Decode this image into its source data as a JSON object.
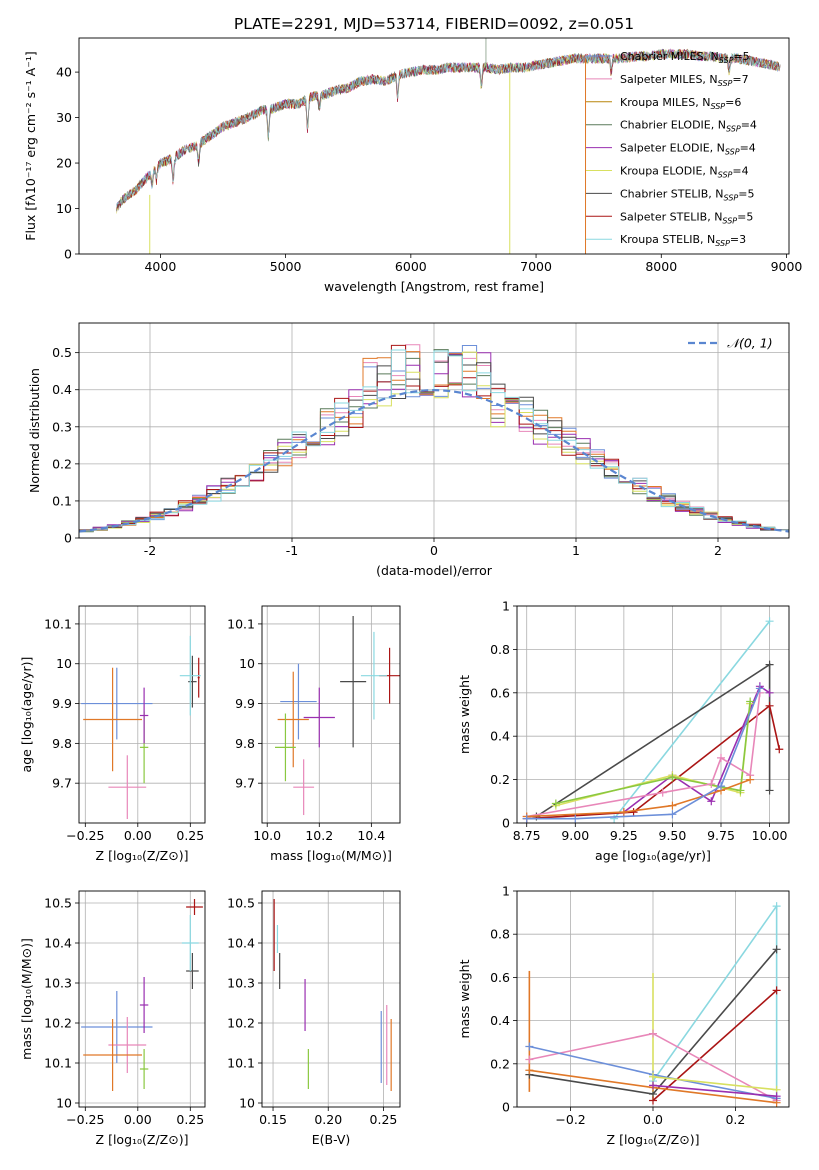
{
  "figure": {
    "title": "PLATE=2291, MJD=53714, FIBERID=0092, z=0.051"
  },
  "colors": {
    "chab_miles": "#6c8fd9",
    "salp_miles": "#e887b9",
    "krou_miles": "#b8860b",
    "chab_elodie": "#5a7a5a",
    "salp_elodie": "#9a2fb0",
    "krou_elodie": "#d8e060",
    "chab_stelib": "#4a4a4a",
    "salp_stelib": "#aa1515",
    "krou_stelib": "#8ad8e0",
    "orange": "#e07828",
    "green": "#8ac840",
    "normal": "#5a86d0",
    "grid": "#b0b0b0"
  },
  "chart_data": [
    {
      "id": "spectrum",
      "type": "line",
      "title": "PLATE=2291, MJD=53714, FIBERID=0092, z=0.051",
      "xlabel": "wavelength [Angstrom, rest frame]",
      "ylabel": "Flux [fλ10⁻¹⁷ erg cm⁻² s⁻¹ A⁻¹]",
      "xlim": [
        3350,
        9020
      ],
      "ylim": [
        0,
        47.5
      ],
      "xticks": [
        4000,
        5000,
        6000,
        7000,
        8000,
        9000
      ],
      "yticks": [
        0,
        10,
        20,
        30,
        40
      ],
      "grid": false,
      "legend_position": "top-right",
      "continuum": {
        "x": [
          3650,
          3700,
          3800,
          3900,
          4000,
          4100,
          4200,
          4300,
          4400,
          4500,
          4600,
          4700,
          4800,
          4900,
          5000,
          5100,
          5200,
          5300,
          5400,
          5500,
          5600,
          5700,
          5800,
          5900,
          6000,
          6100,
          6200,
          6300,
          6400,
          6500,
          6600,
          6700,
          6800,
          6900,
          7000,
          7100,
          7200,
          7300,
          7400,
          7500,
          7600,
          7700,
          7800,
          7900,
          8000,
          8100,
          8200,
          8300,
          8400,
          8500,
          8600,
          8700,
          8800,
          8900,
          8950
        ],
        "y": [
          10,
          12,
          14,
          17,
          20,
          21,
          23,
          24,
          26,
          28,
          29,
          30,
          31.5,
          32,
          33,
          33,
          34.5,
          35,
          36,
          36.5,
          38,
          38.5,
          38,
          39.5,
          40,
          40.5,
          40.5,
          41,
          41,
          41,
          41,
          40.5,
          41,
          41,
          41.5,
          42,
          42.5,
          43,
          43,
          43,
          43,
          43,
          43.5,
          43.5,
          44,
          44,
          44,
          43.5,
          43.5,
          43,
          43,
          42.5,
          42,
          41.5,
          41
        ]
      },
      "series": [
        {
          "name": "Chabrier MILES, N_SSP=5",
          "legend_main": "Chabrier MILES, N",
          "sub": "SSP",
          "suffix": "=5",
          "color_key": "chab_miles"
        },
        {
          "name": "Salpeter MILES, N_SSP=7",
          "legend_main": "Salpeter MILES, N",
          "sub": "SSP",
          "suffix": "=7",
          "color_key": "salp_miles"
        },
        {
          "name": "Kroupa MILES, N_SSP=6",
          "legend_main": "Kroupa MILES, N",
          "sub": "SSP",
          "suffix": "=6",
          "color_key": "krou_miles"
        },
        {
          "name": "Chabrier ELODIE, N_SSP=4",
          "legend_main": "Chabrier ELODIE, N",
          "sub": "SSP",
          "suffix": "=4",
          "color_key": "chab_elodie"
        },
        {
          "name": "Salpeter ELODIE, N_SSP=4",
          "legend_main": "Salpeter ELODIE, N",
          "sub": "SSP",
          "suffix": "=4",
          "color_key": "salp_elodie"
        },
        {
          "name": "Kroupa ELODIE, N_SSP=4",
          "legend_main": "Kroupa ELODIE, N",
          "sub": "SSP",
          "suffix": "=4",
          "color_key": "krou_elodie"
        },
        {
          "name": "Chabrier STELIB, N_SSP=5",
          "legend_main": "Chabrier STELIB, N",
          "sub": "SSP",
          "suffix": "=5",
          "color_key": "chab_stelib"
        },
        {
          "name": "Salpeter STELIB, N_SSP=5",
          "legend_main": "Salpeter STELIB, N",
          "sub": "SSP",
          "suffix": "=5",
          "color_key": "salp_stelib"
        },
        {
          "name": "Kroupa STELIB, N_SSP=3",
          "legend_main": "Kroupa STELIB, N",
          "sub": "SSP",
          "suffix": "=3",
          "color_key": "krou_stelib"
        }
      ],
      "legend_label_main": [
        "Chabrier MILES, N",
        "Salpeter MILES, N",
        "Kroupa MILES, N",
        "Chabrier ELODIE, N",
        "Salpeter ELODIE, N",
        "Kroupa ELODIE, N",
        "Chabrier STELIB, N",
        "Salpeter STELIB, N",
        "Kroupa STELIB, N"
      ],
      "legend_sub": "SSP",
      "legend_suffix": [
        "=5",
        "=7",
        "=6",
        "=4",
        "=4",
        "=4",
        "=5",
        "=5",
        "=3"
      ]
    },
    {
      "id": "residuals",
      "type": "histogram",
      "xlabel": "(data-model)/error",
      "ylabel": "Normed distribution",
      "xlim": [
        -2.5,
        2.5
      ],
      "ylim": [
        0,
        0.58
      ],
      "xticks": [
        -2,
        -1,
        0,
        1,
        2
      ],
      "yticks": [
        0.0,
        0.1,
        0.2,
        0.3,
        0.4,
        0.5
      ],
      "grid": true,
      "legend_position": "top-right",
      "legend_label": "𝒩(0, 1)",
      "normal_curve": {
        "mean": 0,
        "sigma": 1
      },
      "bin_width": 0.1
    },
    {
      "id": "age_vs_z",
      "type": "errorbar",
      "xlabel": "Z [log₁₀(Z/Z⊙)]",
      "ylabel": "age  [log₁₀(age/yr)]",
      "xlim": [
        -0.28,
        0.32
      ],
      "ylim": [
        9.6,
        10.145
      ],
      "xticks": [
        -0.25,
        0.0,
        0.25
      ],
      "xtick_labels": [
        "−0.25",
        "0.00",
        "0.25"
      ],
      "yticks": [
        9.7,
        9.8,
        9.9,
        10.0,
        10.1
      ],
      "grid": true,
      "points": [
        {
          "x": -0.1,
          "y": 9.9,
          "xerr": 0.17,
          "yerr": 0.09,
          "color_key": "chab_miles"
        },
        {
          "x": -0.05,
          "y": 9.69,
          "xerr": 0.09,
          "yerr": 0.08,
          "color_key": "salp_miles"
        },
        {
          "x": -0.12,
          "y": 9.86,
          "xerr": 0.14,
          "yerr": 0.13,
          "color_key": "orange"
        },
        {
          "x": 0.03,
          "y": 9.79,
          "xerr": 0.02,
          "yerr": 0.09,
          "color_key": "green"
        },
        {
          "x": 0.03,
          "y": 9.87,
          "xerr": 0.02,
          "yerr": 0.07,
          "color_key": "salp_elodie"
        },
        {
          "x": 0.26,
          "y": 9.955,
          "xerr": 0.02,
          "yerr": 0.065,
          "color_key": "chab_stelib"
        },
        {
          "x": 0.29,
          "y": 9.965,
          "xerr": 0.005,
          "yerr": 0.05,
          "color_key": "salp_stelib"
        },
        {
          "x": 0.25,
          "y": 9.97,
          "xerr": 0.05,
          "yerr": 0.1,
          "color_key": "krou_stelib"
        }
      ]
    },
    {
      "id": "age_vs_mass",
      "type": "errorbar",
      "xlabel": "mass [log₁₀(M/M⊙)]",
      "ylabel": "",
      "xlim": [
        9.98,
        10.51
      ],
      "ylim": [
        9.6,
        10.145
      ],
      "xticks": [
        10.0,
        10.2,
        10.4
      ],
      "xtick_labels": [
        "10.0",
        "10.2",
        "10.4"
      ],
      "yticks": [
        9.7,
        9.8,
        9.9,
        10.0,
        10.1
      ],
      "grid": true,
      "points": [
        {
          "x": 10.12,
          "y": 9.905,
          "xerr": 0.07,
          "yerr": 0.095,
          "color_key": "chab_miles"
        },
        {
          "x": 10.14,
          "y": 9.69,
          "xerr": 0.04,
          "yerr": 0.07,
          "color_key": "salp_miles"
        },
        {
          "x": 10.1,
          "y": 9.86,
          "xerr": 0.06,
          "yerr": 0.12,
          "color_key": "orange"
        },
        {
          "x": 10.07,
          "y": 9.79,
          "xerr": 0.04,
          "yerr": 0.085,
          "color_key": "green"
        },
        {
          "x": 10.2,
          "y": 9.865,
          "xerr": 0.06,
          "yerr": 0.075,
          "color_key": "salp_elodie"
        },
        {
          "x": 10.33,
          "y": 9.955,
          "xerr": 0.05,
          "yerr": 0.165,
          "color_key": "chab_stelib"
        },
        {
          "x": 10.47,
          "y": 9.97,
          "xerr": 0.04,
          "yerr": 0.07,
          "color_key": "salp_stelib"
        },
        {
          "x": 10.41,
          "y": 9.97,
          "xerr": 0.05,
          "yerr": 0.11,
          "color_key": "krou_stelib"
        }
      ]
    },
    {
      "id": "weight_vs_age",
      "type": "line",
      "xlabel": "age  [log₁₀(age/yr)]",
      "ylabel": "mass weight",
      "xlim": [
        8.7,
        10.1
      ],
      "ylim": [
        0,
        1.0
      ],
      "xticks": [
        8.75,
        9.0,
        9.25,
        9.5,
        9.75,
        10.0
      ],
      "xtick_labels": [
        "8.75",
        "9.00",
        "9.25",
        "9.50",
        "9.75",
        "10.00"
      ],
      "yticks": [
        0.0,
        0.2,
        0.4,
        0.6,
        0.8,
        1.0
      ],
      "grid": true,
      "series": [
        {
          "color_key": "krou_stelib",
          "x": [
            9.2,
            10.0
          ],
          "y": [
            0.02,
            0.93
          ]
        },
        {
          "color_key": "chab_stelib",
          "x": [
            8.8,
            10.0,
            10.0
          ],
          "y": [
            0.03,
            0.73,
            0.15
          ]
        },
        {
          "color_key": "salp_stelib",
          "x": [
            8.75,
            9.3,
            10.0,
            10.05
          ],
          "y": [
            0.02,
            0.05,
            0.54,
            0.34
          ]
        },
        {
          "color_key": "salp_elodie",
          "x": [
            9.25,
            9.5,
            9.7,
            9.95,
            10.0
          ],
          "y": [
            0.05,
            0.22,
            0.1,
            0.63,
            0.6
          ]
        },
        {
          "color_key": "krou_elodie",
          "x": [
            8.9,
            9.5,
            9.85,
            9.9
          ],
          "y": [
            0.08,
            0.22,
            0.14,
            0.55
          ]
        },
        {
          "color_key": "green",
          "x": [
            8.9,
            9.5,
            9.85,
            9.9
          ],
          "y": [
            0.09,
            0.21,
            0.15,
            0.56
          ]
        },
        {
          "color_key": "salp_miles",
          "x": [
            8.75,
            9.45,
            9.7,
            9.75,
            9.9,
            9.95
          ],
          "y": [
            0.03,
            0.14,
            0.18,
            0.3,
            0.22,
            0.6
          ]
        },
        {
          "color_key": "orange",
          "x": [
            8.75,
            9.25,
            9.5,
            9.75,
            9.9
          ],
          "y": [
            0.03,
            0.05,
            0.08,
            0.15,
            0.2
          ]
        },
        {
          "color_key": "chab_miles",
          "x": [
            8.75,
            9.0,
            9.5,
            9.75,
            9.95
          ],
          "y": [
            0.02,
            0.02,
            0.04,
            0.17,
            0.62
          ]
        }
      ]
    },
    {
      "id": "mass_vs_z",
      "type": "errorbar",
      "xlabel": "Z [log₁₀(Z/Z⊙)]",
      "ylabel": "mass [log₁₀(M/M⊙)]",
      "xlim": [
        -0.28,
        0.32
      ],
      "ylim": [
        9.99,
        10.53
      ],
      "xticks": [
        -0.25,
        0.0,
        0.25
      ],
      "xtick_labels": [
        "−0.25",
        "0.00",
        "0.25"
      ],
      "yticks": [
        10.0,
        10.1,
        10.2,
        10.3,
        10.4,
        10.5
      ],
      "grid": true,
      "points": [
        {
          "x": -0.1,
          "y": 10.19,
          "xerr": 0.17,
          "yerr": 0.09,
          "color_key": "chab_miles"
        },
        {
          "x": -0.05,
          "y": 10.145,
          "xerr": 0.09,
          "yerr": 0.07,
          "color_key": "salp_miles"
        },
        {
          "x": -0.12,
          "y": 10.12,
          "xerr": 0.14,
          "yerr": 0.09,
          "color_key": "orange"
        },
        {
          "x": 0.03,
          "y": 10.085,
          "xerr": 0.02,
          "yerr": 0.05,
          "color_key": "green"
        },
        {
          "x": 0.03,
          "y": 10.245,
          "xerr": 0.02,
          "yerr": 0.07,
          "color_key": "salp_elodie"
        },
        {
          "x": 0.26,
          "y": 10.33,
          "xerr": 0.03,
          "yerr": 0.045,
          "color_key": "chab_stelib"
        },
        {
          "x": 0.27,
          "y": 10.49,
          "xerr": 0.04,
          "yerr": 0.02,
          "color_key": "salp_stelib"
        },
        {
          "x": 0.25,
          "y": 10.4,
          "xerr": 0.04,
          "yerr": 0.07,
          "color_key": "krou_stelib"
        }
      ]
    },
    {
      "id": "mass_vs_ebv",
      "type": "errorbar",
      "xlabel": "E(B-V)",
      "ylabel": "",
      "xlim": [
        0.14,
        0.265
      ],
      "ylim": [
        9.99,
        10.53
      ],
      "xticks": [
        0.15,
        0.2,
        0.25
      ],
      "xtick_labels": [
        "0.15",
        "0.20",
        "0.25"
      ],
      "yticks": [
        10.0,
        10.1,
        10.2,
        10.3,
        10.4,
        10.5
      ],
      "grid": true,
      "points": [
        {
          "x": 0.248,
          "y": 10.14,
          "xerr": 0,
          "yerr": 0.09,
          "color_key": "chab_miles"
        },
        {
          "x": 0.253,
          "y": 10.145,
          "xerr": 0,
          "yerr": 0.1,
          "color_key": "salp_miles"
        },
        {
          "x": 0.257,
          "y": 10.12,
          "xerr": 0,
          "yerr": 0.09,
          "color_key": "orange"
        },
        {
          "x": 0.182,
          "y": 10.085,
          "xerr": 0,
          "yerr": 0.05,
          "color_key": "green"
        },
        {
          "x": 0.179,
          "y": 10.245,
          "xerr": 0,
          "yerr": 0.065,
          "color_key": "salp_elodie"
        },
        {
          "x": 0.156,
          "y": 10.33,
          "xerr": 0,
          "yerr": 0.045,
          "color_key": "chab_stelib"
        },
        {
          "x": 0.151,
          "y": 10.42,
          "xerr": 0,
          "yerr": 0.09,
          "color_key": "salp_stelib"
        },
        {
          "x": 0.154,
          "y": 10.41,
          "xerr": 0,
          "yerr": 0.035,
          "color_key": "krou_stelib"
        }
      ]
    },
    {
      "id": "weight_vs_z",
      "type": "line",
      "xlabel": "Z [log₁₀(Z/Z⊙)]",
      "ylabel": "mass weight",
      "xlim": [
        -0.33,
        0.33
      ],
      "ylim": [
        0,
        1.0
      ],
      "xticks": [
        -0.2,
        0.0,
        0.2
      ],
      "xtick_labels": [
        "−0.2",
        "0.0",
        "0.2"
      ],
      "yticks": [
        0.0,
        0.2,
        0.4,
        0.6,
        0.8,
        1.0
      ],
      "grid": true,
      "series": [
        {
          "color_key": "krou_stelib",
          "x": [
            0.0,
            0.3
          ],
          "y": [
            0.12,
            0.93
          ]
        },
        {
          "color_key": "chab_stelib",
          "x": [
            -0.3,
            0.0,
            0.3
          ],
          "y": [
            0.15,
            0.06,
            0.73
          ]
        },
        {
          "color_key": "salp_stelib",
          "x": [
            0.0,
            0.3
          ],
          "y": [
            0.03,
            0.54
          ]
        },
        {
          "color_key": "salp_miles",
          "x": [
            -0.3,
            0.0,
            0.3
          ],
          "y": [
            0.22,
            0.34,
            0.03
          ]
        },
        {
          "color_key": "chab_miles",
          "x": [
            -0.3,
            0.0,
            0.3
          ],
          "y": [
            0.28,
            0.15,
            0.04
          ]
        },
        {
          "color_key": "orange",
          "x": [
            -0.3,
            0.0,
            0.3
          ],
          "y": [
            0.17,
            0.09,
            0.02
          ]
        },
        {
          "color_key": "krou_elodie",
          "x": [
            0.0,
            0.3
          ],
          "y": [
            0.14,
            0.08
          ]
        },
        {
          "color_key": "salp_elodie",
          "x": [
            0.0,
            0.3
          ],
          "y": [
            0.1,
            0.05
          ]
        }
      ],
      "vertical_bars": [
        {
          "x": -0.3,
          "ymin": 0.07,
          "ymax": 0.63,
          "color_key": "orange"
        },
        {
          "x": 0.0,
          "ymin": 0.03,
          "ymax": 0.62,
          "color_key": "krou_elodie"
        },
        {
          "x": 0.3,
          "ymin": 0.02,
          "ymax": 0.93,
          "color_key": "krou_stelib"
        }
      ]
    }
  ]
}
